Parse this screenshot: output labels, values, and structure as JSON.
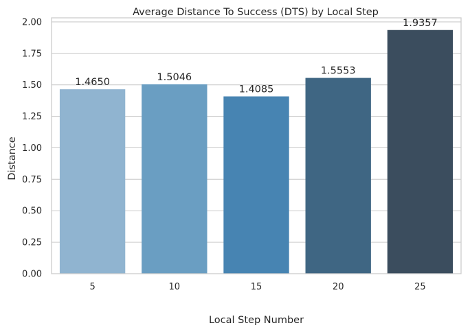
{
  "chart_data": {
    "type": "bar",
    "title": "Average Distance To Success (DTS) by Local Step",
    "xlabel": "Local Step Number",
    "ylabel": "Distance",
    "categories": [
      "5",
      "10",
      "15",
      "20",
      "25"
    ],
    "values": [
      1.465,
      1.5046,
      1.4085,
      1.5553,
      1.9357
    ],
    "data_labels": [
      "1.4650",
      "1.5046",
      "1.4085",
      "1.5553",
      "1.9357"
    ],
    "colors": [
      "#90b4d0",
      "#6a9ec2",
      "#4784b2",
      "#3f6683",
      "#3b4d5e"
    ],
    "ylim": [
      0,
      2.0325
    ],
    "yticks": [
      0.0,
      0.25,
      0.5,
      0.75,
      1.0,
      1.25,
      1.5,
      1.75,
      2.0
    ],
    "ytick_labels": [
      "0.00",
      "0.25",
      "0.50",
      "0.75",
      "1.00",
      "1.25",
      "1.50",
      "1.75",
      "2.00"
    ],
    "grid": true,
    "legend": "none"
  }
}
